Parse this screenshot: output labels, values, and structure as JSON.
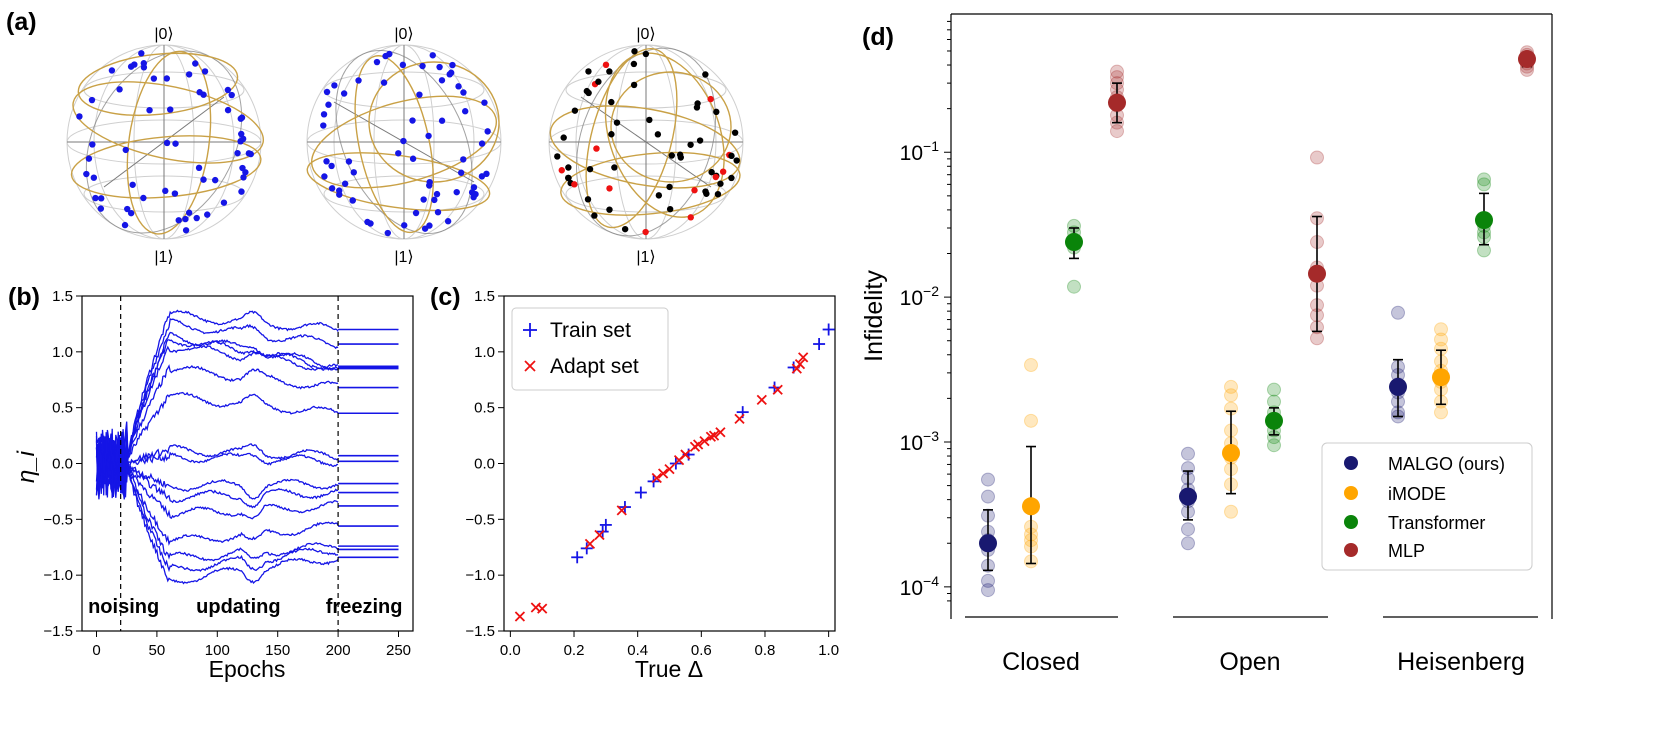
{
  "panel_labels": {
    "a": "(a)",
    "b": "(b)",
    "c": "(c)",
    "d": "(d)"
  },
  "bloch": {
    "ket0": "|0⟩",
    "ket1": "|1⟩",
    "colors": {
      "train": "#1515e6",
      "adapt": "#ee1111",
      "other": "#000000",
      "trajectory": "#c9a146"
    }
  },
  "chart_data": [
    {
      "id": "b",
      "type": "line",
      "xlabel": "Epochs",
      "ylabel": "η_i",
      "xlim": [
        -12,
        262
      ],
      "ylim": [
        -1.5,
        1.5
      ],
      "xticks": [
        0,
        50,
        100,
        150,
        200,
        250
      ],
      "yticks": [
        -1.5,
        -1.0,
        -0.5,
        0.0,
        0.5,
        1.0,
        1.5
      ],
      "ytick_labels": [
        "−1.5",
        "−1.0",
        "−0.5",
        "0.0",
        "0.5",
        "1.0",
        "1.5"
      ],
      "phase_lines": [
        20,
        200
      ],
      "phase_labels": [
        "noising",
        "updating",
        "freezing"
      ],
      "final_values": [
        1.2,
        1.07,
        0.87,
        0.86,
        0.85,
        0.68,
        0.45,
        0.07,
        0.02,
        -0.18,
        -0.26,
        -0.38,
        -0.56,
        -0.74,
        -0.77,
        -0.84
      ],
      "peak_values": [
        1.33,
        1.25,
        1.15,
        1.12,
        1.05,
        0.85,
        0.6,
        0.12,
        0.06,
        -0.2,
        -0.3,
        -0.45,
        -0.7,
        -0.85,
        -0.95,
        -1.05
      ],
      "color": "#1515e6"
    },
    {
      "id": "c",
      "type": "scatter",
      "xlabel": "True Δ",
      "ylabel": "",
      "xlim": [
        -0.02,
        1.02
      ],
      "ylim": [
        -1.5,
        1.5
      ],
      "xticks": [
        0.0,
        0.2,
        0.4,
        0.6,
        0.8,
        1.0
      ],
      "xtick_labels": [
        "0.0",
        "0.2",
        "0.4",
        "0.6",
        "0.8",
        "1.0"
      ],
      "yticks": [
        -1.5,
        -1.0,
        -0.5,
        0.0,
        0.5,
        1.0,
        1.5
      ],
      "ytick_labels": [
        "−1.5",
        "−1.0",
        "−0.5",
        "0.0",
        "0.5",
        "1.0",
        "1.5"
      ],
      "series": [
        {
          "name": "Train set",
          "marker": "+",
          "color": "#1515e6",
          "x": [
            0.21,
            0.24,
            0.29,
            0.3,
            0.36,
            0.41,
            0.45,
            0.52,
            0.56,
            0.73,
            0.83,
            0.89,
            0.97,
            1.0
          ],
          "y": [
            -0.84,
            -0.76,
            -0.61,
            -0.55,
            -0.39,
            -0.26,
            -0.16,
            0.0,
            0.08,
            0.46,
            0.68,
            0.86,
            1.07,
            1.2
          ]
        },
        {
          "name": "Adapt set",
          "marker": "x",
          "color": "#ee1111",
          "x": [
            0.03,
            0.08,
            0.1,
            0.25,
            0.28,
            0.35,
            0.46,
            0.48,
            0.5,
            0.53,
            0.55,
            0.58,
            0.59,
            0.61,
            0.63,
            0.64,
            0.66,
            0.72,
            0.79,
            0.84,
            0.9,
            0.91,
            0.92
          ],
          "y": [
            -1.37,
            -1.29,
            -1.3,
            -0.72,
            -0.64,
            -0.42,
            -0.13,
            -0.09,
            -0.05,
            0.03,
            0.08,
            0.15,
            0.17,
            0.2,
            0.24,
            0.25,
            0.28,
            0.4,
            0.57,
            0.66,
            0.85,
            0.89,
            0.95
          ]
        }
      ]
    },
    {
      "id": "d",
      "type": "scatter",
      "yscale": "log",
      "ylabel": "Infidelity",
      "ylim": [
        6e-05,
        0.9
      ],
      "yticks": [
        0.0001,
        0.001,
        0.01,
        0.1
      ],
      "ytick_base": "10",
      "ytick_exponents": [
        "−4",
        "−3",
        "−2",
        "−1"
      ],
      "categories": [
        "Closed",
        "Open",
        "Heisenberg"
      ],
      "series": [
        {
          "name": "MALGO (ours)",
          "color": "#191970",
          "means": [
            0.0002,
            0.00042,
            0.0024
          ],
          "err_low": [
            0.00013,
            0.00029,
            0.0015
          ],
          "err_high": [
            0.00034,
            0.00063,
            0.0037
          ],
          "points": [
            [
              9.5e-05,
              0.00011,
              0.00014,
              0.00018,
              0.00021,
              0.00024,
              0.00031,
              0.00042,
              0.00055
            ],
            [
              0.0002,
              0.00025,
              0.00033,
              0.00039,
              0.00047,
              0.00056,
              0.00066,
              0.00083
            ],
            [
              0.0015,
              0.0016,
              0.0019,
              0.0022,
              0.0025,
              0.0029,
              0.0033,
              0.0078
            ]
          ]
        },
        {
          "name": "iMODE",
          "color": "#ffa500",
          "means": [
            0.00036,
            0.00084,
            0.0028
          ],
          "err_low": [
            0.000145,
            0.00044,
            0.00182
          ],
          "err_high": [
            0.00093,
            0.00163,
            0.0043
          ],
          "points": [
            [
              0.00015,
              0.00019,
              0.00021,
              0.00023,
              0.00026,
              0.0014,
              0.0034
            ],
            [
              0.00033,
              0.00051,
              0.00065,
              0.00078,
              0.00098,
              0.0012,
              0.0017,
              0.0021,
              0.0024
            ],
            [
              0.0016,
              0.0019,
              0.0023,
              0.0026,
              0.0031,
              0.0036,
              0.0044,
              0.0051,
              0.006
            ]
          ]
        },
        {
          "name": "Transformer",
          "color": "#0a840a",
          "means": [
            0.024,
            0.0014,
            0.034
          ],
          "err_low": [
            0.0185,
            0.00112,
            0.023
          ],
          "err_high": [
            0.03,
            0.00172,
            0.052
          ],
          "points": [
            [
              0.0118,
              0.022,
              0.025,
              0.028,
              0.031
            ],
            [
              0.00095,
              0.00108,
              0.0012,
              0.0014,
              0.0016,
              0.0019,
              0.0023
            ],
            [
              0.021,
              0.026,
              0.028,
              0.031,
              0.034,
              0.06,
              0.065
            ]
          ]
        },
        {
          "name": "MLP",
          "color": "#a52a2a",
          "means": [
            0.22,
            0.0145,
            0.44
          ],
          "err_low": [
            0.16,
            0.0058,
            0.39
          ],
          "err_high": [
            0.3,
            0.036,
            0.49
          ],
          "points": [
            [
              0.14,
              0.16,
              0.18,
              0.21,
              0.24,
              0.27,
              0.3,
              0.33,
              0.36
            ],
            [
              0.0052,
              0.0062,
              0.0075,
              0.0088,
              0.012,
              0.016,
              0.024,
              0.035,
              0.092
            ],
            [
              0.37,
              0.39,
              0.41,
              0.43,
              0.45,
              0.47,
              0.49
            ]
          ]
        }
      ]
    }
  ]
}
